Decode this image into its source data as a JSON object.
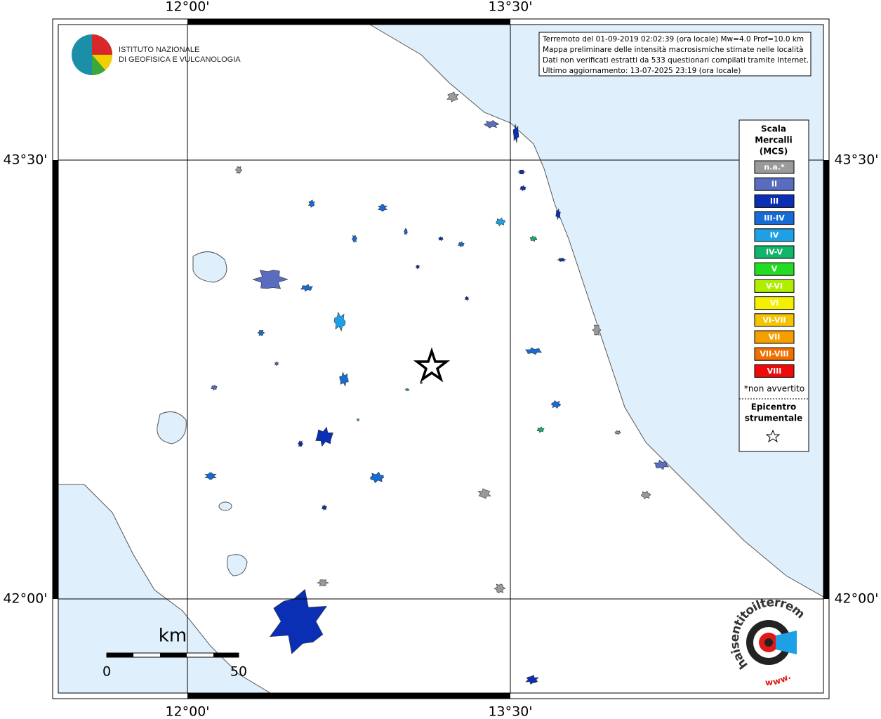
{
  "map": {
    "info": [
      "Terremoto del 01-09-2019 02:02:39 (ora locale) Mw=4.0 Prof=10.0 km",
      "Mappa preliminare delle intensità macrosismiche stimate nelle località",
      "Dati non verificati estratti da 533 questionari compilati tramite Internet.",
      "Ultimo aggiornamento: 13-07-2025 23:19 (ora locale)"
    ],
    "lon_labels": [
      "12°00'",
      "13°30'"
    ],
    "lat_labels": [
      "43°30'",
      "42°00'"
    ],
    "scale_bar": {
      "unit": "km",
      "labels": [
        "0",
        "50"
      ]
    }
  },
  "logo": {
    "lines": [
      "ISTITUTO NAZIONALE",
      "DI GEOFISICA E VULCANOLOGIA"
    ]
  },
  "legend": {
    "title": [
      "Scala",
      "Mercalli",
      "(MCS)"
    ],
    "items": [
      {
        "label": "n.a.*",
        "color": "#9a9a9a"
      },
      {
        "label": "II",
        "color": "#5a6cbe"
      },
      {
        "label": "III",
        "color": "#0a2eb4"
      },
      {
        "label": "III-IV",
        "color": "#176bd6"
      },
      {
        "label": "IV",
        "color": "#1ea0e6"
      },
      {
        "label": "IV-V",
        "color": "#12b36a"
      },
      {
        "label": "V",
        "color": "#22dc22"
      },
      {
        "label": "V-VI",
        "color": "#b0ee00"
      },
      {
        "label": "VI",
        "color": "#f5ef00"
      },
      {
        "label": "VI-VII",
        "color": "#f5c400"
      },
      {
        "label": "VII",
        "color": "#f5a000"
      },
      {
        "label": "VII-VIII",
        "color": "#ef7000"
      },
      {
        "label": "VIII",
        "color": "#ee0a0a"
      }
    ],
    "note": "*non avvertito",
    "epicenter": [
      "Epicentro",
      "strumentale"
    ]
  },
  "badge": {
    "text": "haisentitoilterremoto.it",
    "prefix": "www."
  }
}
